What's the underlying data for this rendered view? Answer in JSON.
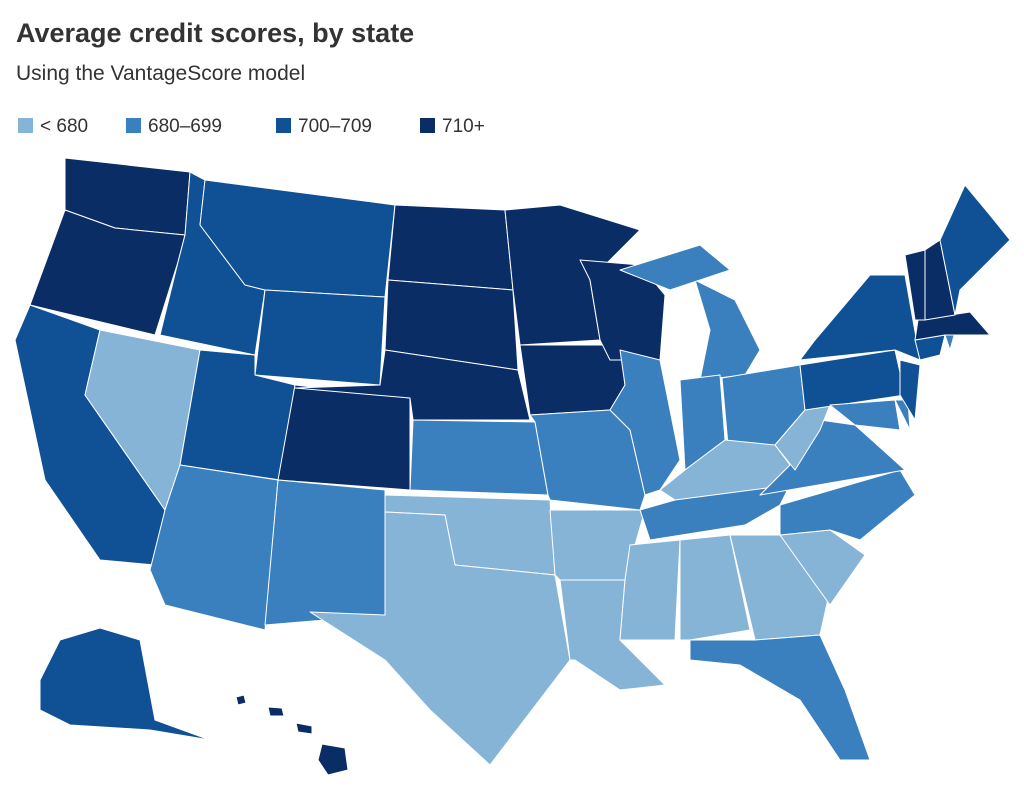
{
  "header": {
    "title": "Average credit scores, by state",
    "subtitle": "Using the VantageScore model"
  },
  "legend": [
    {
      "label": "< 680",
      "color": "#86b4d7"
    },
    {
      "label": "680–699",
      "color": "#3a80bf"
    },
    {
      "label": "700–709",
      "color": "#0f5194"
    },
    {
      "label": "710+",
      "color": "#0a2d66"
    }
  ]
}
